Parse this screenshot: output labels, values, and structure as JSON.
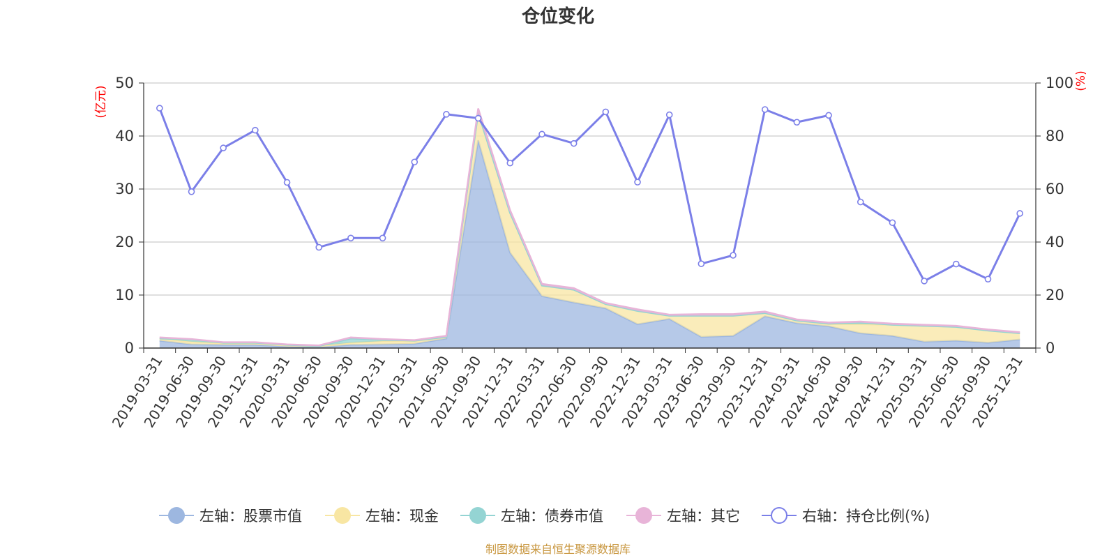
{
  "chart_data": {
    "type": "area",
    "title": "仓位变化",
    "left_axis_unit": "(亿元)",
    "right_axis_unit": "(%)",
    "categories": [
      "2019-03-31",
      "2019-06-30",
      "2019-09-30",
      "2019-12-31",
      "2020-03-31",
      "2020-06-30",
      "2020-09-30",
      "2020-12-31",
      "2021-03-31",
      "2021-06-30",
      "2021-09-30",
      "2021-12-31",
      "2022-03-31",
      "2022-06-30",
      "2022-09-30",
      "2022-12-31",
      "2023-03-31",
      "2023-06-30",
      "2023-09-30",
      "2023-12-31",
      "2024-03-31",
      "2024-06-30",
      "2024-09-30",
      "2024-12-31",
      "2025-03-31",
      "2025-06-30",
      "2025-09-30",
      "2025-12-31"
    ],
    "ylim_left": [
      0,
      50
    ],
    "ylim_right": [
      0,
      100
    ],
    "yticks_left": [
      "0",
      "10",
      "20",
      "30",
      "40",
      "50"
    ],
    "yticks_right": [
      "0",
      "20",
      "40",
      "60",
      "80",
      "100"
    ],
    "series": [
      {
        "name": "左轴：股票市值",
        "axis": "left",
        "color": "#9db7e0",
        "values": [
          1.4,
          0.7,
          0.6,
          0.6,
          0.3,
          0.2,
          0.6,
          0.7,
          0.8,
          1.8,
          39.2,
          18.0,
          9.8,
          8.6,
          7.5,
          4.5,
          5.5,
          2.1,
          2.3,
          6.0,
          4.7,
          4.1,
          2.8,
          2.3,
          1.2,
          1.4,
          1.0,
          1.6
        ]
      },
      {
        "name": "左轴：现金",
        "axis": "left",
        "color": "#f8e6a3",
        "values": [
          0.4,
          0.5,
          0.3,
          0.3,
          0.2,
          0.2,
          0.4,
          0.6,
          0.5,
          0.3,
          5.2,
          7.5,
          2.0,
          2.4,
          0.8,
          2.5,
          0.6,
          4.0,
          3.8,
          0.6,
          0.5,
          0.4,
          1.7,
          2.1,
          3.0,
          2.6,
          2.3,
          1.2
        ]
      },
      {
        "name": "左轴：债券市值",
        "axis": "left",
        "color": "#94d4d3",
        "values": [
          0.0,
          0.4,
          0.1,
          0.1,
          0.1,
          0.0,
          0.8,
          0.3,
          0.1,
          0.0,
          0.0,
          0.0,
          0.0,
          0.0,
          0.0,
          0.0,
          0.0,
          0.0,
          0.0,
          0.0,
          0.0,
          0.1,
          0.3,
          0.0,
          0.0,
          0.0,
          0.0,
          0.0
        ]
      },
      {
        "name": "左轴：其它",
        "axis": "left",
        "color": "#e8b4d8",
        "values": [
          0.2,
          0.1,
          0.1,
          0.1,
          0.1,
          0.1,
          0.2,
          0.1,
          0.1,
          0.2,
          0.8,
          0.5,
          0.3,
          0.3,
          0.2,
          0.3,
          0.2,
          0.3,
          0.3,
          0.3,
          0.2,
          0.2,
          0.2,
          0.2,
          0.2,
          0.2,
          0.2,
          0.2
        ]
      },
      {
        "name": "右轴：持仓比例(%)",
        "axis": "right",
        "color": "#7b7fe8",
        "values": [
          90.5,
          59.0,
          75.5,
          82.2,
          62.5,
          38.0,
          41.5,
          41.5,
          70.2,
          88.2,
          86.7,
          69.8,
          80.7,
          77.2,
          89.1,
          62.6,
          88.0,
          31.8,
          35.0,
          90.0,
          85.2,
          87.8,
          55.1,
          47.3,
          25.3,
          31.7,
          26.0,
          50.8
        ]
      }
    ]
  },
  "legend": {
    "items": [
      {
        "label": "左轴：股票市值",
        "color": "#9db7e0"
      },
      {
        "label": "左轴：现金",
        "color": "#f8e6a3"
      },
      {
        "label": "左轴：债券市值",
        "color": "#94d4d3"
      },
      {
        "label": "左轴：其它",
        "color": "#e8b4d8"
      },
      {
        "label": "右轴：持仓比例(%)",
        "color": "#7b7fe8"
      }
    ]
  },
  "source": {
    "text": "制图数据来自恒生聚源数据库",
    "color": "#c8963e"
  },
  "colors": {
    "unit_label": "#ff0000",
    "axis": "#333333",
    "grid": "#cccccc"
  }
}
